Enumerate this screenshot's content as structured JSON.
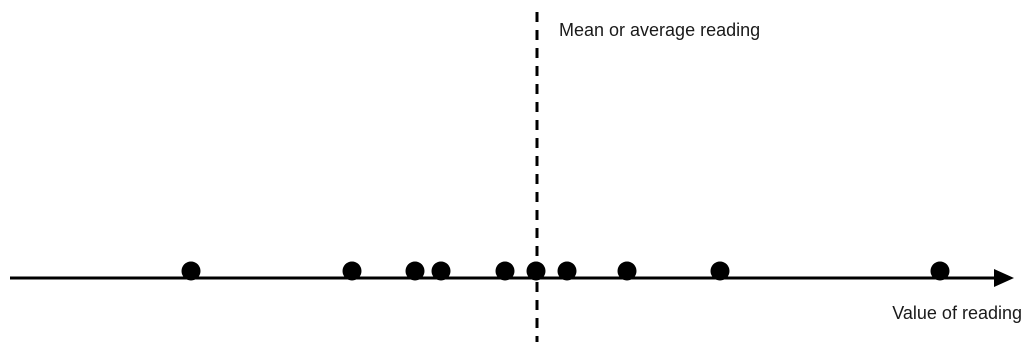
{
  "diagram": {
    "mean_label": "Mean or average reading",
    "axis_label": "Value of reading",
    "colors": {
      "ink": "#000000",
      "text": "#1a1a1a",
      "background": "#ffffff"
    }
  }
}
